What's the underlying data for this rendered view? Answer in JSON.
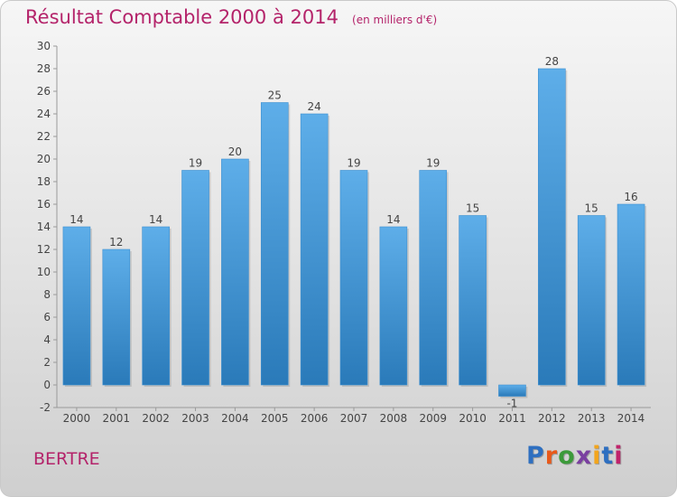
{
  "header": {
    "title": "Résultat Comptable 2000 à 2014",
    "subtitle": "(en milliers d'€)"
  },
  "commune": "BERTRE",
  "logo": {
    "text": "Proxiti",
    "colors": [
      "#2e6fc0",
      "#e8591a",
      "#3c9a3a",
      "#7a3fa0",
      "#f2a51d",
      "#2e6fc0",
      "#c0236b"
    ]
  },
  "chart_data": {
    "type": "bar",
    "title": "Résultat Comptable 2000 à 2014",
    "subtitle": "(en milliers d'€)",
    "xlabel": "",
    "ylabel": "",
    "categories": [
      "2000",
      "2001",
      "2002",
      "2003",
      "2004",
      "2005",
      "2006",
      "2007",
      "2008",
      "2009",
      "2010",
      "2011",
      "2012",
      "2013",
      "2014"
    ],
    "values": [
      14,
      12,
      14,
      19,
      20,
      25,
      24,
      19,
      14,
      19,
      15,
      -1,
      28,
      15,
      16
    ],
    "ylim": [
      -2,
      30
    ],
    "yticks": [
      -2,
      0,
      2,
      4,
      6,
      8,
      10,
      12,
      14,
      16,
      18,
      20,
      22,
      24,
      26,
      28,
      30
    ],
    "grid": false,
    "colors": {
      "bar_light": "#5dade8",
      "bar_dark": "#2b7bbd",
      "axis": "#999999",
      "text": "#444444"
    }
  }
}
